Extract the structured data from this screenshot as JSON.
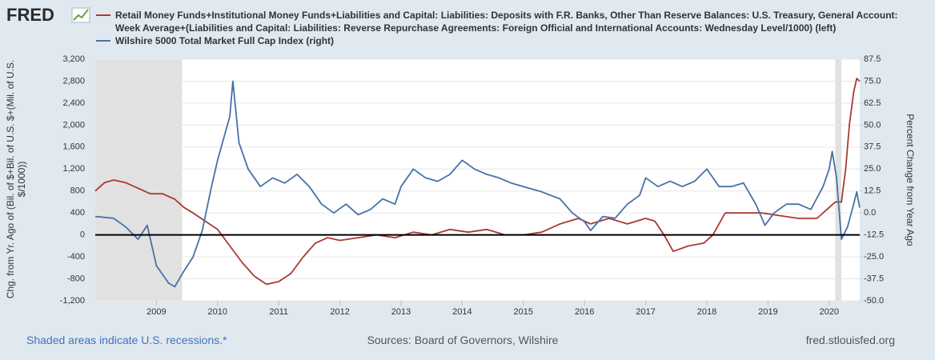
{
  "chart_data": {
    "type": "line",
    "logo": "FRED",
    "ylabel": "Chg. from Yr. Ago of (Bil. of $+Bil. of U.S. $+(Mil. of U.S. $/1000))",
    "y2label": "Percent Change from Year Ago",
    "note": "Shaded areas indicate U.S. recessions.*",
    "source": "Sources: Board of Governors, Wilshire",
    "site": "fred.stlouisfed.org",
    "recessions": [
      [
        2008.0,
        2009.42
      ],
      [
        2020.1,
        2020.2
      ]
    ],
    "xlim": [
      2008.0,
      2020.5
    ],
    "xticks": [
      2009,
      2010,
      2011,
      2012,
      2013,
      2014,
      2015,
      2016,
      2017,
      2018,
      2019,
      2020
    ],
    "ylim": [
      -1200,
      3200
    ],
    "yticks": [
      {
        "value": -1200,
        "label": "-1,200"
      },
      -800,
      -400,
      0,
      400,
      800,
      {
        "value": 1200,
        "label": "1,200"
      },
      {
        "value": 1600,
        "label": "1,600"
      },
      {
        "value": 2000,
        "label": "2,000"
      },
      {
        "value": 2400,
        "label": "2,400"
      },
      {
        "value": 2800,
        "label": "2,800"
      },
      {
        "value": 3200,
        "label": "3,200"
      }
    ],
    "y2lim": [
      -50,
      87.5
    ],
    "y2ticks": [
      {
        "value": -50,
        "label": "-50.0"
      },
      -37.5,
      {
        "value": -25,
        "label": "-25.0"
      },
      -12.5,
      {
        "value": 0,
        "label": "0.0"
      },
      12.5,
      {
        "value": 25,
        "label": "25.0"
      },
      37.5,
      {
        "value": 50,
        "label": "50.0"
      },
      62.5,
      {
        "value": 75,
        "label": "75.0"
      },
      87.5
    ],
    "grid": true,
    "series": [
      {
        "name": "Retail Money Funds+Institutional Money Funds+Liabilities and Capital: Liabilities: Deposits with F.R. Banks, Other Than Reserve Balances: U.S. Treasury, General Account: Week Average+(Liabilities and Capital: Liabilities: Reverse Repurchase Agreements: Foreign Official and International Accounts: Wednesday Level/1000) (left)",
        "color": "#aa3a33",
        "axis": "y",
        "x": [
          2008.0,
          2008.15,
          2008.3,
          2008.5,
          2008.7,
          2008.9,
          2009.1,
          2009.3,
          2009.45,
          2009.6,
          2009.8,
          2010.0,
          2010.2,
          2010.4,
          2010.6,
          2010.8,
          2011.0,
          2011.2,
          2011.4,
          2011.6,
          2011.8,
          2012.0,
          2012.3,
          2012.6,
          2012.9,
          2013.2,
          2013.5,
          2013.8,
          2014.1,
          2014.4,
          2014.7,
          2015.0,
          2015.3,
          2015.6,
          2015.9,
          2016.1,
          2016.4,
          2016.7,
          2017.0,
          2017.15,
          2017.3,
          2017.45,
          2017.7,
          2017.95,
          2018.1,
          2018.3,
          2018.6,
          2018.9,
          2019.2,
          2019.5,
          2019.8,
          2020.0,
          2020.1,
          2020.2,
          2020.27,
          2020.33,
          2020.4,
          2020.45,
          2020.5
        ],
        "values": [
          800,
          950,
          1000,
          950,
          850,
          750,
          750,
          650,
          500,
          400,
          250,
          100,
          -200,
          -500,
          -750,
          -900,
          -850,
          -700,
          -400,
          -150,
          -50,
          -100,
          -50,
          0,
          -50,
          50,
          0,
          100,
          50,
          100,
          0,
          0,
          50,
          200,
          300,
          200,
          300,
          200,
          300,
          250,
          0,
          -300,
          -200,
          -150,
          0,
          400,
          400,
          400,
          350,
          300,
          300,
          500,
          600,
          600,
          1200,
          2000,
          2600,
          2850,
          2800
        ]
      },
      {
        "name": "Wilshire 5000 Total Market Full Cap Index (right)",
        "color": "#4572a7",
        "axis": "y2",
        "x": [
          2008.0,
          2008.3,
          2008.5,
          2008.7,
          2008.85,
          2009.0,
          2009.2,
          2009.3,
          2009.45,
          2009.6,
          2009.75,
          2009.9,
          2010.0,
          2010.2,
          2010.25,
          2010.35,
          2010.5,
          2010.7,
          2010.9,
          2011.1,
          2011.3,
          2011.5,
          2011.7,
          2011.9,
          2012.1,
          2012.3,
          2012.5,
          2012.7,
          2012.9,
          2013.0,
          2013.2,
          2013.4,
          2013.6,
          2013.8,
          2014.0,
          2014.2,
          2014.4,
          2014.6,
          2014.8,
          2015.0,
          2015.3,
          2015.6,
          2015.8,
          2016.0,
          2016.1,
          2016.3,
          2016.5,
          2016.7,
          2016.9,
          2017.0,
          2017.2,
          2017.4,
          2017.6,
          2017.8,
          2018.0,
          2018.2,
          2018.4,
          2018.6,
          2018.8,
          2018.95,
          2019.1,
          2019.3,
          2019.5,
          2019.7,
          2019.9,
          2020.0,
          2020.05,
          2020.12,
          2020.2,
          2020.3,
          2020.4,
          2020.45,
          2020.5
        ],
        "values": [
          -2,
          -3,
          -8,
          -15,
          -7,
          -30,
          -40,
          -42,
          -33,
          -25,
          -10,
          15,
          30,
          55,
          75,
          40,
          25,
          15,
          20,
          17,
          22,
          15,
          5,
          0,
          5,
          -1,
          2,
          8,
          5,
          15,
          25,
          20,
          18,
          22,
          30,
          25,
          22,
          20,
          17,
          15,
          12,
          8,
          0,
          -5,
          -10,
          -2,
          -3,
          5,
          10,
          20,
          15,
          18,
          15,
          18,
          25,
          15,
          15,
          17,
          5,
          -7,
          0,
          5,
          5,
          2,
          15,
          25,
          35,
          20,
          -15,
          -8,
          5,
          12,
          3
        ]
      }
    ]
  }
}
